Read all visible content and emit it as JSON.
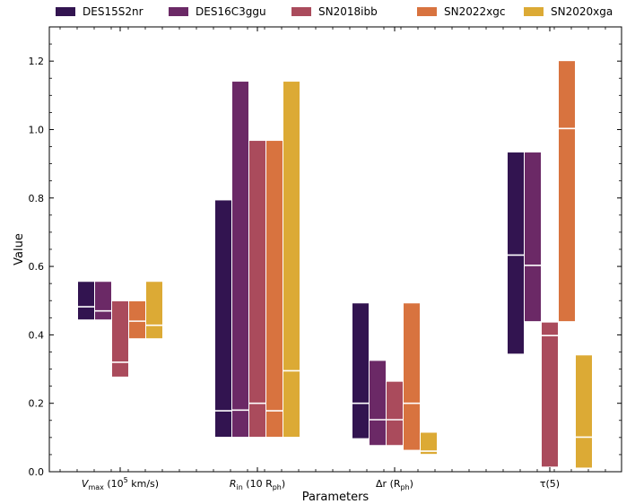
{
  "chart_data": {
    "type": "bar",
    "subtype": "floating-range-bar-with-median",
    "title": "",
    "xlabel": "Parameters",
    "ylabel": "Value",
    "ylim": [
      0,
      1.3
    ],
    "yticks": [
      "0.0",
      "0.2",
      "0.4",
      "0.6",
      "0.8",
      "1.0",
      "1.2"
    ],
    "yticks_values": [
      0,
      0.2,
      0.4,
      0.6,
      0.8,
      1.0,
      1.2
    ],
    "grid": false,
    "legend_position": "top",
    "categories": [
      {
        "main": "V",
        "sub": "max",
        "rest": " (10",
        "sup": "5",
        "tail": " km/s)"
      },
      {
        "main": "R",
        "sub": "in",
        "rest": " (10 R",
        "sub2": "ph",
        "tail": ")"
      },
      {
        "main": "Δr (R",
        "sub": "ph",
        "tail": ")"
      },
      {
        "main": "τ(5)"
      }
    ],
    "series": [
      {
        "name": "DES15S2nr",
        "color": "#321450",
        "ranges": [
          {
            "low": 0.445,
            "median": 0.482,
            "high": 0.555
          },
          {
            "low": 0.102,
            "median": 0.178,
            "high": 0.793
          },
          {
            "low": 0.098,
            "median": 0.2,
            "high": 0.492
          },
          {
            "low": 0.345,
            "median": 0.633,
            "high": 0.933
          }
        ]
      },
      {
        "name": "DES16C3ggu",
        "color": "#6b2966",
        "ranges": [
          {
            "low": 0.445,
            "median": 0.47,
            "high": 0.555
          },
          {
            "low": 0.102,
            "median": 0.18,
            "high": 1.14
          },
          {
            "low": 0.078,
            "median": 0.152,
            "high": 0.324
          },
          {
            "low": 0.44,
            "median": 0.603,
            "high": 0.933
          }
        ]
      },
      {
        "name": "SN2018ibb",
        "color": "#aa4b5c",
        "ranges": [
          {
            "low": 0.278,
            "median": 0.32,
            "high": 0.498
          },
          {
            "low": 0.102,
            "median": 0.2,
            "high": 0.967
          },
          {
            "low": 0.078,
            "median": 0.152,
            "high": 0.263
          },
          {
            "low": 0.015,
            "median": 0.398,
            "high": 0.436
          }
        ]
      },
      {
        "name": "SN2022xgc",
        "color": "#d8733f",
        "ranges": [
          {
            "low": 0.39,
            "median": 0.44,
            "high": 0.498
          },
          {
            "low": 0.102,
            "median": 0.178,
            "high": 0.967
          },
          {
            "low": 0.064,
            "median": 0.2,
            "high": 0.492
          },
          {
            "low": 0.44,
            "median": 1.003,
            "high": 1.2
          }
        ]
      },
      {
        "name": "SN2020xga",
        "color": "#dcaa35",
        "ranges": [
          {
            "low": 0.39,
            "median": 0.428,
            "high": 0.555
          },
          {
            "low": 0.102,
            "median": 0.295,
            "high": 1.14
          },
          {
            "low": 0.052,
            "median": 0.06,
            "high": 0.114
          },
          {
            "low": 0.012,
            "median": 0.101,
            "high": 0.34
          }
        ]
      }
    ]
  }
}
